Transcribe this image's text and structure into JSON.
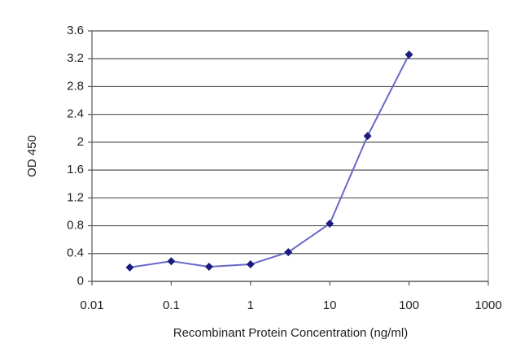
{
  "chart_data": {
    "type": "line",
    "x_label": "Recombinant Protein Concentration (ng/ml)",
    "y_label": "OD 450",
    "xscale": "log",
    "series": [
      {
        "color": "#6868c8",
        "marker_color": "#1c1c80",
        "x": [
          0.03,
          0.1,
          0.3,
          1,
          3,
          10,
          30,
          100
        ],
        "values": [
          0.2,
          0.29,
          0.21,
          0.245,
          0.42,
          0.83,
          2.09,
          3.26
        ]
      }
    ],
    "xlim": [
      0.01,
      1000
    ],
    "xticks": [
      0.01,
      0.1,
      1,
      10,
      100,
      1000
    ],
    "ylim": [
      0,
      3.6
    ],
    "yticks": [
      0,
      0.4,
      0.8,
      1.2,
      1.6,
      2,
      2.4,
      2.8,
      3.2,
      3.6
    ],
    "grid": true
  }
}
